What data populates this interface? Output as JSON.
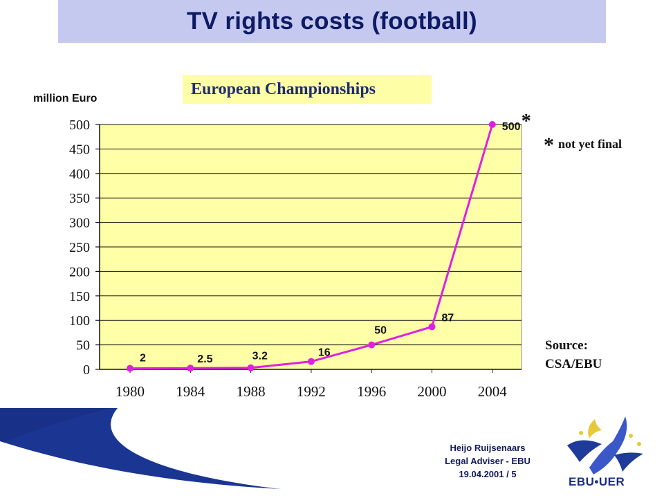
{
  "header": {
    "title": "TV rights costs (football)"
  },
  "chart_data": {
    "type": "line",
    "title": "European Championships",
    "ylabel": "million Euro",
    "xlabel": "",
    "x": [
      "1980",
      "1984",
      "1988",
      "1992",
      "1996",
      "2000",
      "2004"
    ],
    "series": [
      {
        "values": [
          2,
          2.5,
          3.2,
          16,
          50,
          87,
          500
        ]
      }
    ],
    "data_labels": [
      "2",
      "2.5",
      "3.2",
      "16",
      "50",
      "87",
      "500"
    ],
    "ylim": [
      0,
      500
    ],
    "yticks": [
      0,
      50,
      100,
      150,
      200,
      250,
      300,
      350,
      400,
      450,
      500
    ],
    "yticklabels": [
      "0",
      "50",
      "100",
      "150",
      "200",
      "250",
      "300",
      "350",
      "400",
      "450",
      "500"
    ],
    "grid": true,
    "colors": {
      "line": "#e020e0",
      "plot_bg": "#ffffa8",
      "grid": "#111111"
    },
    "asterisk_mark": "*"
  },
  "notes": {
    "asterisk": "*",
    "text": "not yet final"
  },
  "source": {
    "line1": "Source:",
    "line2": "CSA/EBU"
  },
  "footer": {
    "name": "Heijo Ruijsenaars",
    "role": "Legal Adviser - EBU",
    "date_page": "19.04.2001 / 5",
    "logo_text": "EBU•UER"
  }
}
